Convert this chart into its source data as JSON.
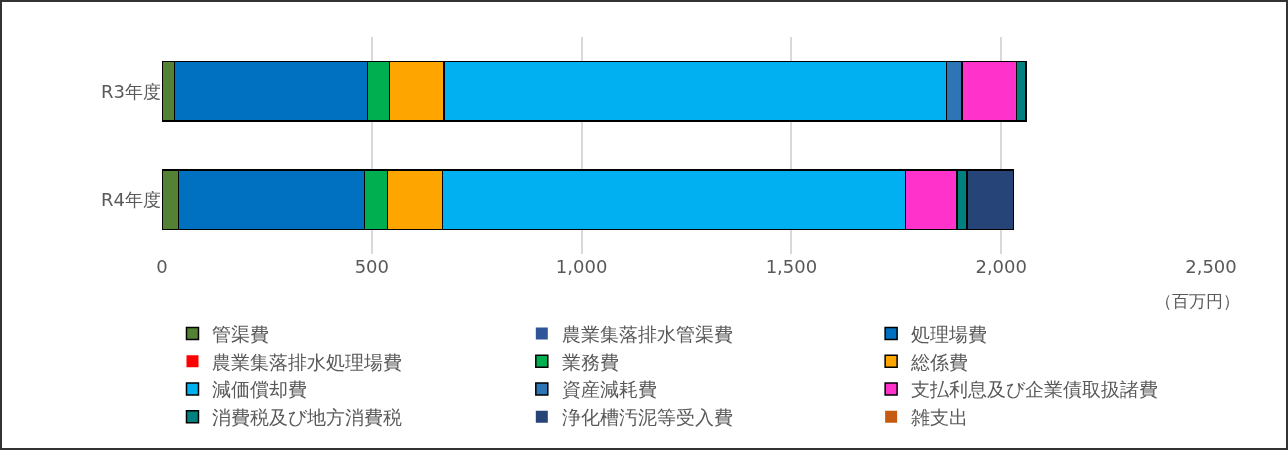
{
  "chart_data": {
    "type": "bar",
    "orientation": "horizontal",
    "stacked": true,
    "categories": [
      "R3年度",
      "R4年度"
    ],
    "series": [
      {
        "name": "管渠費",
        "color": "#548235",
        "values": [
          30,
          39
        ]
      },
      {
        "name": "農業集落排水管渠費",
        "color": "#2f5597",
        "values": [
          0,
          0
        ]
      },
      {
        "name": "処理場費",
        "color": "#0070c0",
        "values": [
          460,
          444
        ]
      },
      {
        "name": "農業集落排水処理場費",
        "color": "#ff0000",
        "values": [
          0,
          0
        ]
      },
      {
        "name": "業務費",
        "color": "#00b050",
        "values": [
          52,
          54
        ]
      },
      {
        "name": "総係費",
        "color": "#ffa500",
        "values": [
          130,
          132
        ]
      },
      {
        "name": "減価償却費",
        "color": "#00b0f0",
        "values": [
          1198,
          1103
        ]
      },
      {
        "name": "資産減耗費",
        "color": "#2e75b6",
        "values": [
          37,
          0
        ]
      },
      {
        "name": "支払利息及び企業債取扱諸費",
        "color": "#ff33cc",
        "values": [
          130,
          123
        ]
      },
      {
        "name": "消費税及び地方消費税",
        "color": "#00807f",
        "values": [
          22,
          24
        ]
      },
      {
        "name": "浄化槽汚泥等受入費",
        "color": "#264478",
        "values": [
          0,
          110
        ]
      },
      {
        "name": "雑支出",
        "color": "#c55a11",
        "values": [
          0,
          0
        ]
      }
    ],
    "xlim": [
      0,
      2500
    ],
    "xticks": [
      0,
      500,
      {
        "value": 1000,
        "label": "1,000"
      },
      {
        "value": 1500,
        "label": "1,500"
      },
      {
        "value": 2000,
        "label": "2,000"
      },
      {
        "value": 2500,
        "label": "2,500"
      }
    ],
    "annotations": [
      "（百万円）"
    ],
    "grid": "x",
    "legend": "bottom"
  }
}
